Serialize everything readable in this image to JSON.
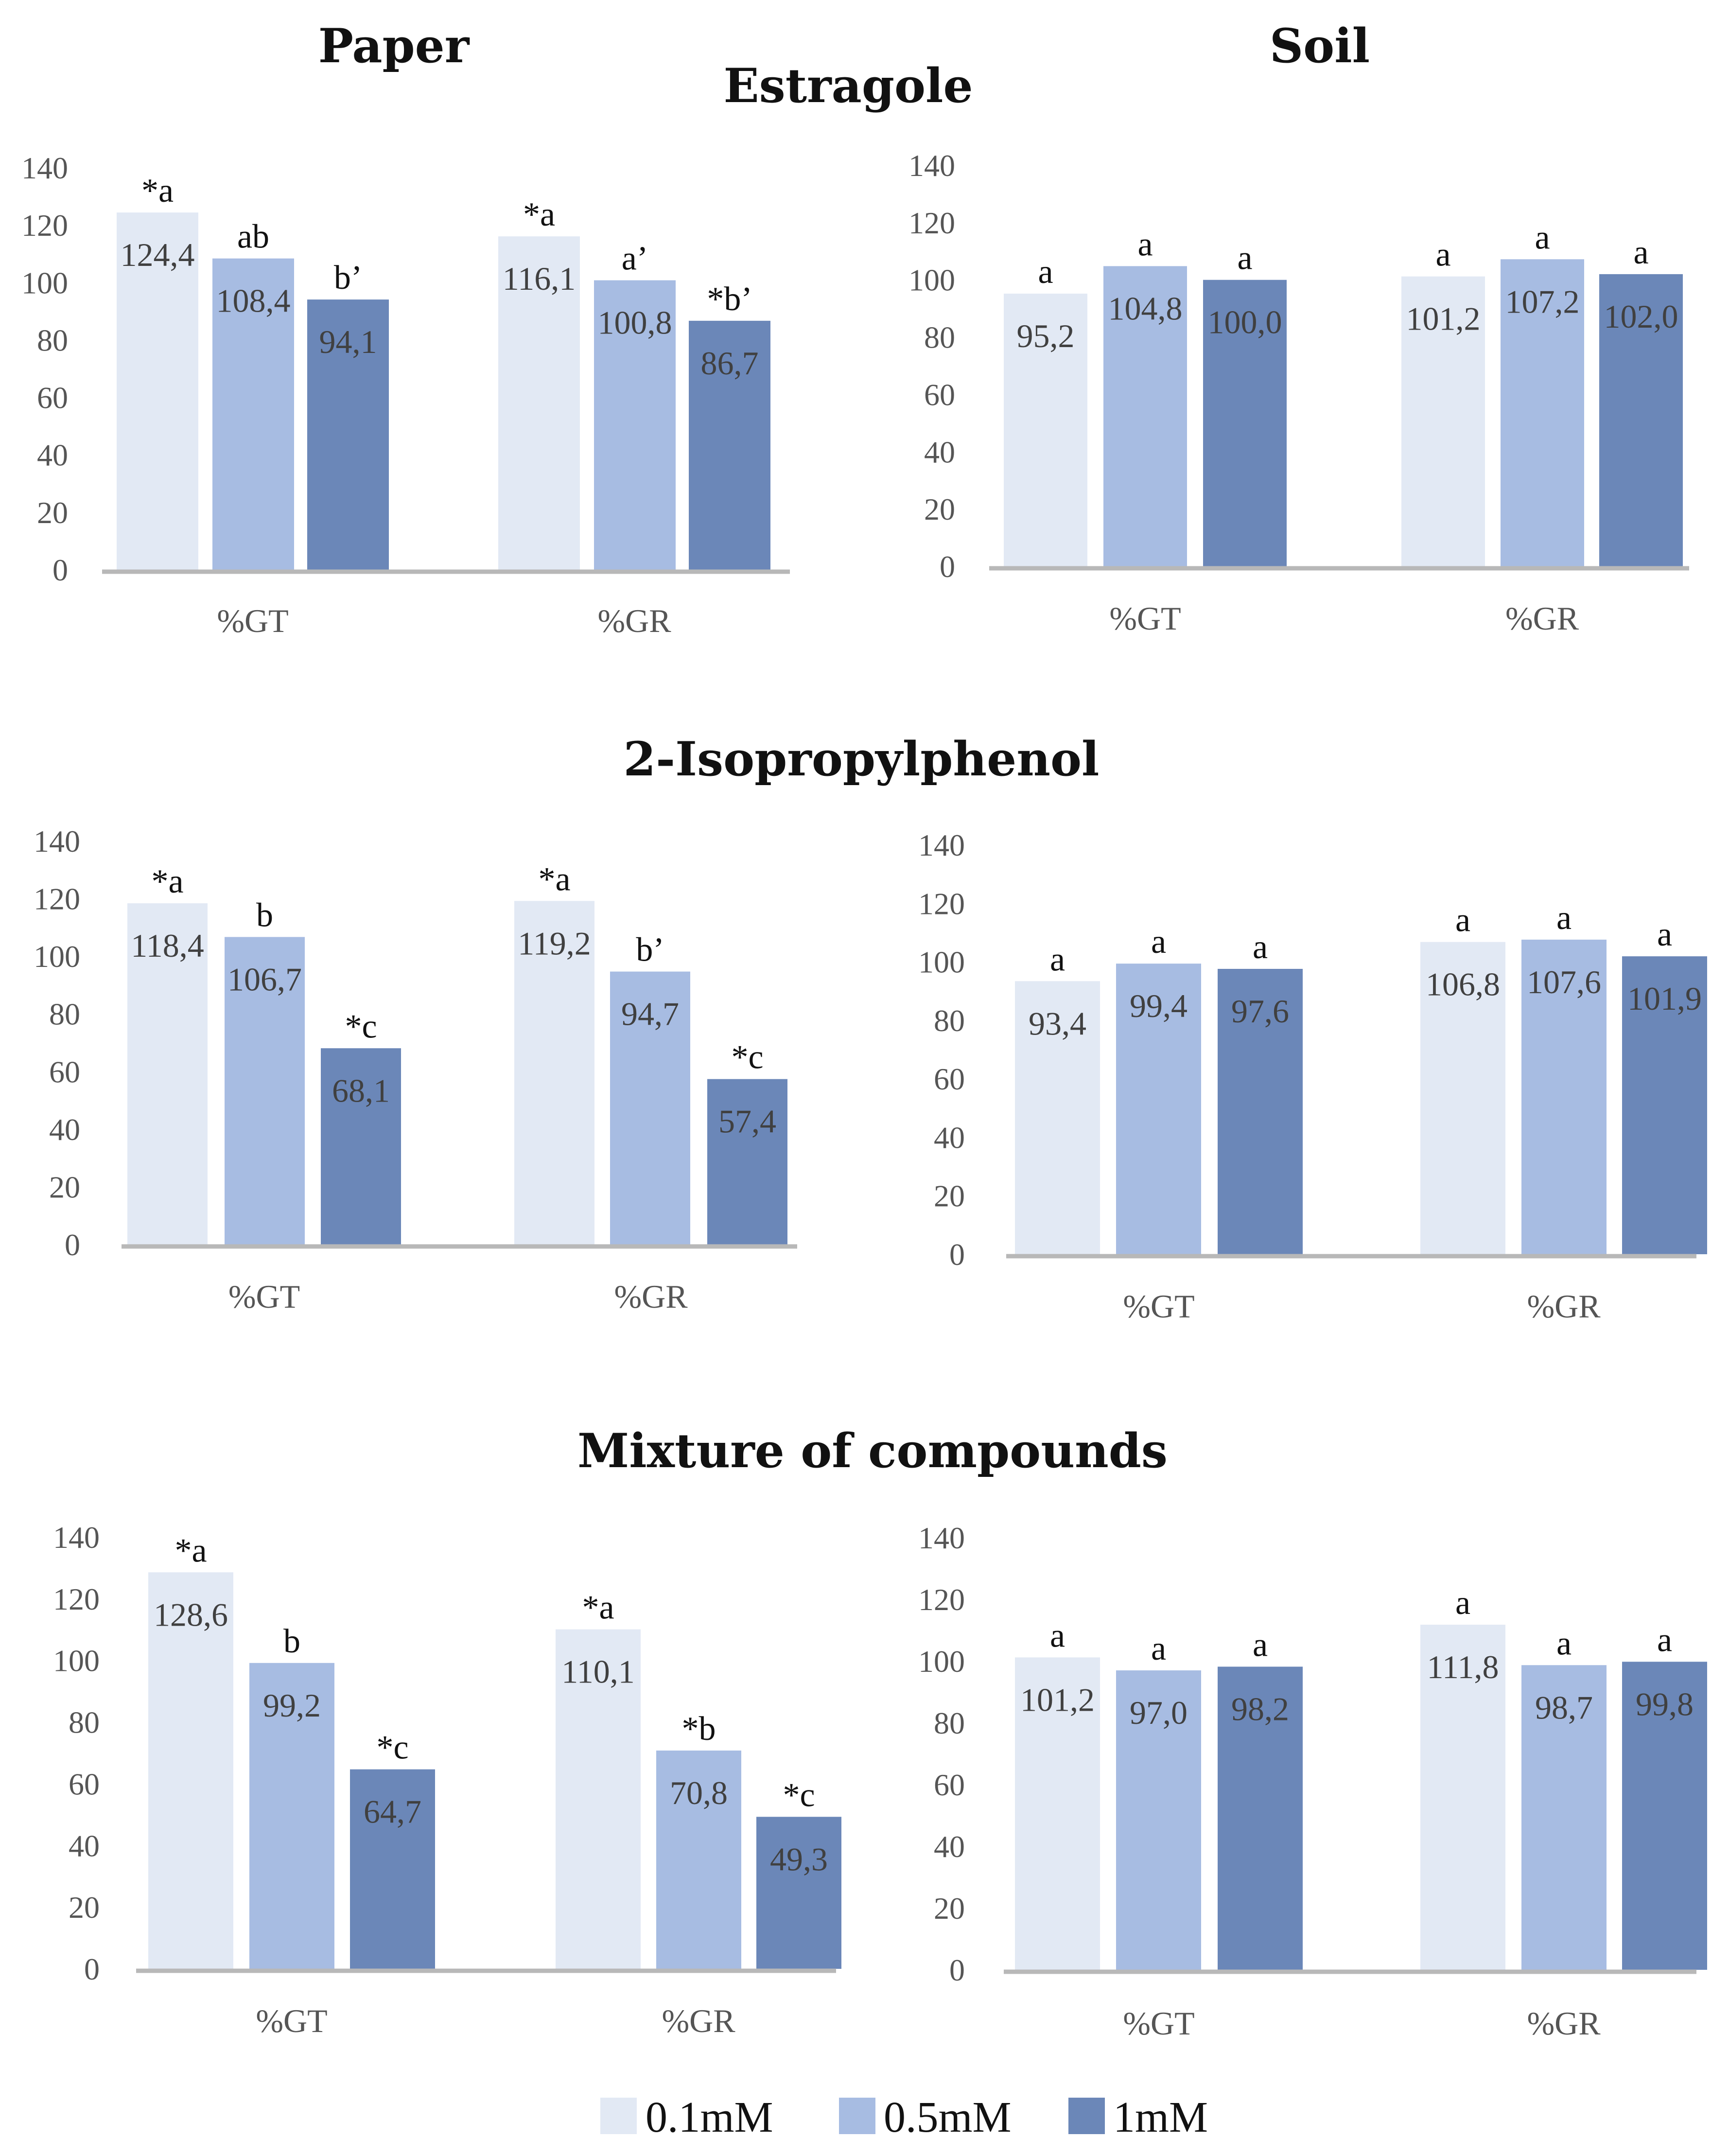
{
  "header": {
    "col_left": "Paper",
    "col_right": "Soil"
  },
  "series_colors": [
    "#e2e9f4",
    "#a7bce2",
    "#6b87b8"
  ],
  "legend": [
    "0.1mM",
    "0.5mM",
    "1mM"
  ],
  "chart_data": [
    {
      "type": "bar",
      "section": "Estragole",
      "panel": "Paper",
      "categories": [
        "%GT",
        "%GR"
      ],
      "ylim": [
        0,
        140
      ],
      "yticks": [
        0,
        20,
        40,
        60,
        80,
        100,
        120,
        140
      ],
      "series": [
        {
          "name": "0.1mM",
          "values": [
            124.4,
            116.1
          ],
          "labels": [
            "124,4",
            "116,1"
          ],
          "sig": [
            "*a",
            "*a"
          ]
        },
        {
          "name": "0.5mM",
          "values": [
            108.4,
            100.8
          ],
          "labels": [
            "108,4",
            "100,8"
          ],
          "sig": [
            "ab",
            "a’"
          ]
        },
        {
          "name": "1mM",
          "values": [
            94.1,
            86.7
          ],
          "labels": [
            "94,1",
            "86,7"
          ],
          "sig": [
            "b’",
            "*b’"
          ]
        }
      ]
    },
    {
      "type": "bar",
      "section": "Estragole",
      "panel": "Soil",
      "categories": [
        "%GT",
        "%GR"
      ],
      "ylim": [
        0,
        140
      ],
      "yticks": [
        0,
        20,
        40,
        60,
        80,
        100,
        120,
        140
      ],
      "series": [
        {
          "name": "0.1mM",
          "values": [
            95.2,
            101.2
          ],
          "labels": [
            "95,2",
            "101,2"
          ],
          "sig": [
            "a",
            "a"
          ]
        },
        {
          "name": "0.5mM",
          "values": [
            104.8,
            107.2
          ],
          "labels": [
            "104,8",
            "107,2"
          ],
          "sig": [
            "a",
            "a"
          ]
        },
        {
          "name": "1mM",
          "values": [
            100.0,
            102.0
          ],
          "labels": [
            "100,0",
            "102,0"
          ],
          "sig": [
            "a",
            "a"
          ]
        }
      ]
    },
    {
      "type": "bar",
      "section": "2-Isopropylphenol",
      "panel": "Paper",
      "categories": [
        "%GT",
        "%GR"
      ],
      "ylim": [
        0,
        140
      ],
      "yticks": [
        0,
        20,
        40,
        60,
        80,
        100,
        120,
        140
      ],
      "series": [
        {
          "name": "0.1mM",
          "values": [
            118.4,
            119.2
          ],
          "labels": [
            "118,4",
            "119,2"
          ],
          "sig": [
            "*a",
            "*a"
          ]
        },
        {
          "name": "0.5mM",
          "values": [
            106.7,
            94.7
          ],
          "labels": [
            "106,7",
            "94,7"
          ],
          "sig": [
            "b",
            "b’"
          ]
        },
        {
          "name": "1mM",
          "values": [
            68.1,
            57.4
          ],
          "labels": [
            "68,1",
            "57,4"
          ],
          "sig": [
            "*c",
            "*c"
          ]
        }
      ]
    },
    {
      "type": "bar",
      "section": "2-Isopropylphenol",
      "panel": "Soil",
      "categories": [
        "%GT",
        "%GR"
      ],
      "ylim": [
        0,
        140
      ],
      "yticks": [
        0,
        20,
        40,
        60,
        80,
        100,
        120,
        140
      ],
      "series": [
        {
          "name": "0.1mM",
          "values": [
            93.4,
            106.8
          ],
          "labels": [
            "93,4",
            "106,8"
          ],
          "sig": [
            "a",
            "a"
          ]
        },
        {
          "name": "0.5mM",
          "values": [
            99.4,
            107.6
          ],
          "labels": [
            "99,4",
            "107,6"
          ],
          "sig": [
            "a",
            "a"
          ]
        },
        {
          "name": "1mM",
          "values": [
            97.6,
            101.9
          ],
          "labels": [
            "97,6",
            "101,9"
          ],
          "sig": [
            "a",
            "a"
          ]
        }
      ]
    },
    {
      "type": "bar",
      "section": "Mixture of compounds",
      "panel": "Paper",
      "categories": [
        "%GT",
        "%GR"
      ],
      "ylim": [
        0,
        140
      ],
      "yticks": [
        0,
        20,
        40,
        60,
        80,
        100,
        120,
        140
      ],
      "series": [
        {
          "name": "0.1mM",
          "values": [
            128.6,
            110.1
          ],
          "labels": [
            "128,6",
            "110,1"
          ],
          "sig": [
            "*a",
            "*a"
          ]
        },
        {
          "name": "0.5mM",
          "values": [
            99.2,
            70.8
          ],
          "labels": [
            "99,2",
            "70,8"
          ],
          "sig": [
            "b",
            "*b"
          ]
        },
        {
          "name": "1mM",
          "values": [
            64.7,
            49.3
          ],
          "labels": [
            "64,7",
            "49,3"
          ],
          "sig": [
            "*c",
            "*c"
          ]
        }
      ]
    },
    {
      "type": "bar",
      "section": "Mixture of compounds",
      "panel": "Soil",
      "categories": [
        "%GT",
        "%GR"
      ],
      "ylim": [
        0,
        140
      ],
      "yticks": [
        0,
        20,
        40,
        60,
        80,
        100,
        120,
        140
      ],
      "series": [
        {
          "name": "0.1mM",
          "values": [
            101.2,
            111.8
          ],
          "labels": [
            "101,2",
            "111,8"
          ],
          "sig": [
            "a",
            "a"
          ]
        },
        {
          "name": "0.5mM",
          "values": [
            97.0,
            98.7
          ],
          "labels": [
            "97,0",
            "98,7"
          ],
          "sig": [
            "a",
            "a"
          ]
        },
        {
          "name": "1mM",
          "values": [
            98.2,
            99.8
          ],
          "labels": [
            "98,2",
            "99,8"
          ],
          "sig": [
            "a",
            "a"
          ]
        }
      ]
    }
  ]
}
